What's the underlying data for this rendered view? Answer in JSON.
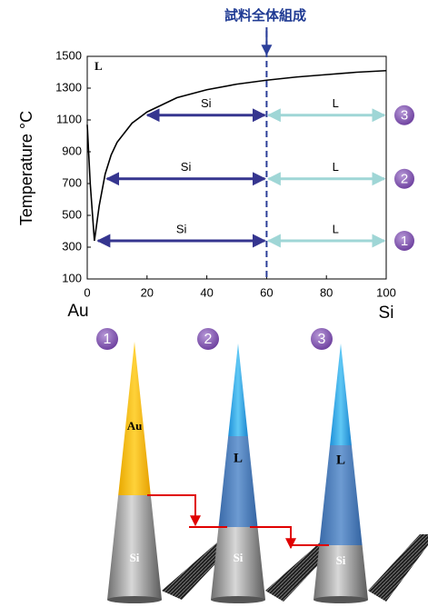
{
  "chart_data": {
    "type": "line",
    "annotation": "試料全体組成",
    "region_label": "L",
    "y_label": "Temperature °C",
    "x_end_labels": [
      "Au",
      "Si"
    ],
    "xlim": [
      0,
      100
    ],
    "xticks": [
      0,
      20,
      40,
      60,
      80,
      100
    ],
    "ylim": [
      100,
      1500
    ],
    "yticks": [
      100,
      300,
      500,
      700,
      900,
      1100,
      1300,
      1500
    ],
    "composition": 60,
    "series": [
      {
        "color": "#000000",
        "x": [
          0,
          1,
          2.4,
          4,
          6,
          8,
          10,
          15,
          20,
          30,
          40,
          50,
          60,
          70,
          80,
          90,
          100
        ],
        "values": [
          1070,
          700,
          340,
          560,
          760,
          880,
          960,
          1080,
          1150,
          1240,
          1290,
          1325,
          1350,
          1370,
          1385,
          1400,
          1410
        ]
      }
    ],
    "tie_lines": [
      {
        "number": "3",
        "temperature": 1130,
        "x_start": 19.5,
        "left_label": "Si",
        "right_label": "L"
      },
      {
        "number": "2",
        "temperature": 730,
        "x_start": 6,
        "left_label": "Si",
        "right_label": "L"
      },
      {
        "number": "1",
        "temperature": 340,
        "x_start": 3,
        "left_label": "Si",
        "right_label": "L"
      }
    ]
  },
  "diagram": {
    "stages": [
      {
        "number": "1",
        "labels": [
          "Au",
          "Si"
        ]
      },
      {
        "number": "2",
        "labels": [
          "L",
          "Si"
        ]
      },
      {
        "number": "3",
        "labels": [
          "L",
          "Si"
        ]
      }
    ]
  }
}
